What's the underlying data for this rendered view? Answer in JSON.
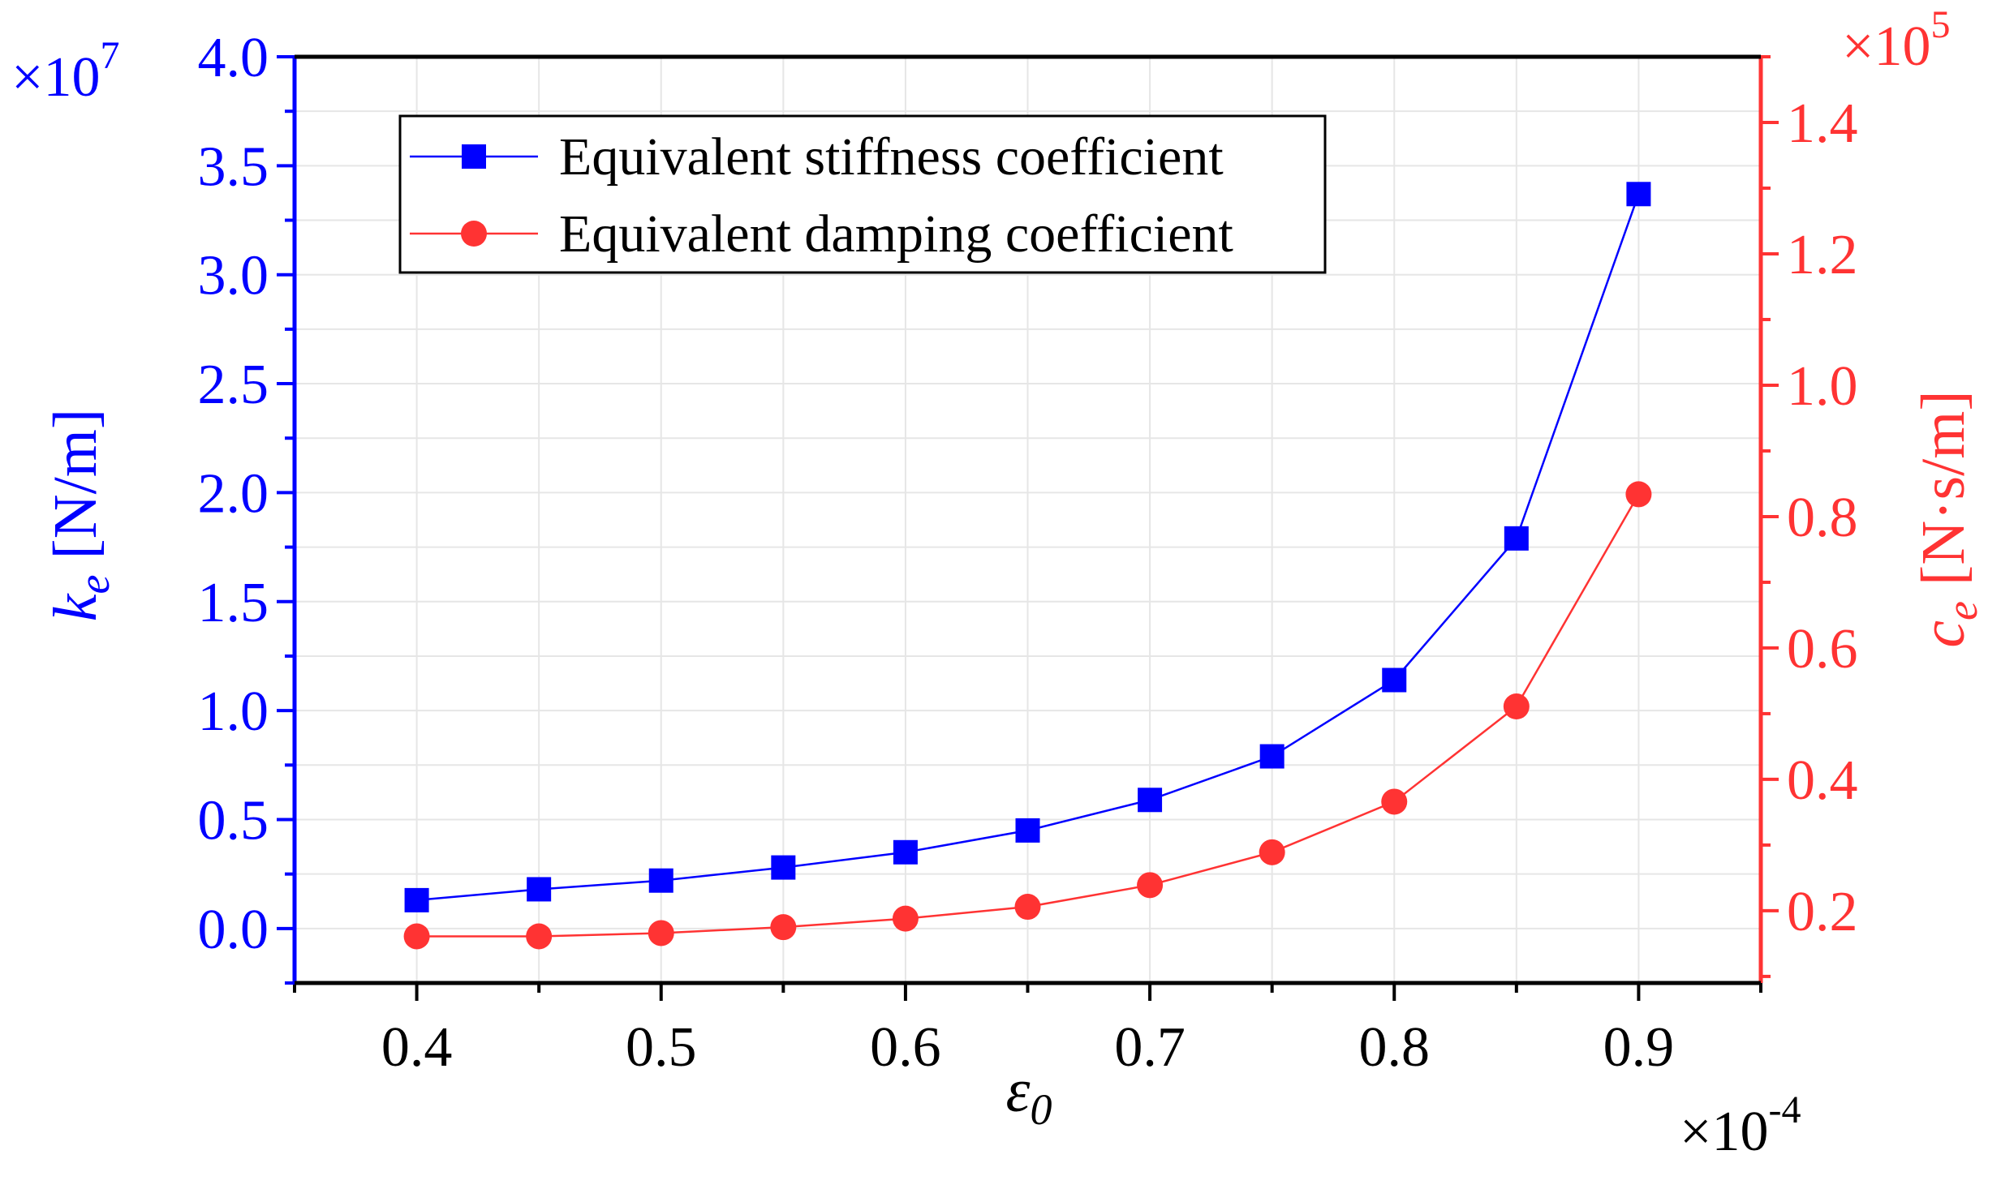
{
  "chart_data": {
    "type": "line",
    "title": "",
    "x": [
      0.4,
      0.45,
      0.5,
      0.55,
      0.6,
      0.65,
      0.7,
      0.75,
      0.8,
      0.85,
      0.9
    ],
    "xlim": [
      0.35,
      0.95
    ],
    "xticks": [
      "0.4",
      "0.5",
      "0.6",
      "0.7",
      "0.8",
      "0.9"
    ],
    "xlabel_symbol": "ε",
    "xlabel_subscript": "0",
    "x_multiplier": {
      "base": "×10",
      "exp": "-4"
    },
    "y_left": {
      "label_symbol": "k",
      "label_subscript": "e",
      "label_unit": " [N/m]",
      "lim": [
        -0.25,
        4.0
      ],
      "ticks": [
        "0.0",
        "0.5",
        "1.0",
        "1.5",
        "2.0",
        "2.5",
        "3.0",
        "3.5",
        "4.0"
      ],
      "multiplier": {
        "base": "×10",
        "exp": "7"
      },
      "color": "#0000FF"
    },
    "y_right": {
      "label_symbol": "c",
      "label_subscript": "e",
      "label_unit": " [N·s/m]",
      "lim": [
        0.09,
        1.5
      ],
      "ticks": [
        "0.2",
        "0.4",
        "0.6",
        "0.8",
        "1.0",
        "1.2",
        "1.4"
      ],
      "multiplier": {
        "base": "×10",
        "exp": "5"
      },
      "color": "#FF3333"
    },
    "series": [
      {
        "name": "Equivalent stiffness coefficient",
        "axis": "left",
        "marker": "square",
        "color": "#0000FF",
        "values": [
          0.13,
          0.18,
          0.22,
          0.28,
          0.35,
          0.45,
          0.59,
          0.79,
          1.14,
          1.79,
          3.37
        ]
      },
      {
        "name": "Equivalent damping coefficient",
        "axis": "right",
        "marker": "circle",
        "color": "#FF3333",
        "values": [
          0.161,
          0.161,
          0.166,
          0.175,
          0.188,
          0.206,
          0.239,
          0.289,
          0.366,
          0.511,
          0.834
        ]
      }
    ],
    "grid": true,
    "legend_position": "top-left"
  }
}
